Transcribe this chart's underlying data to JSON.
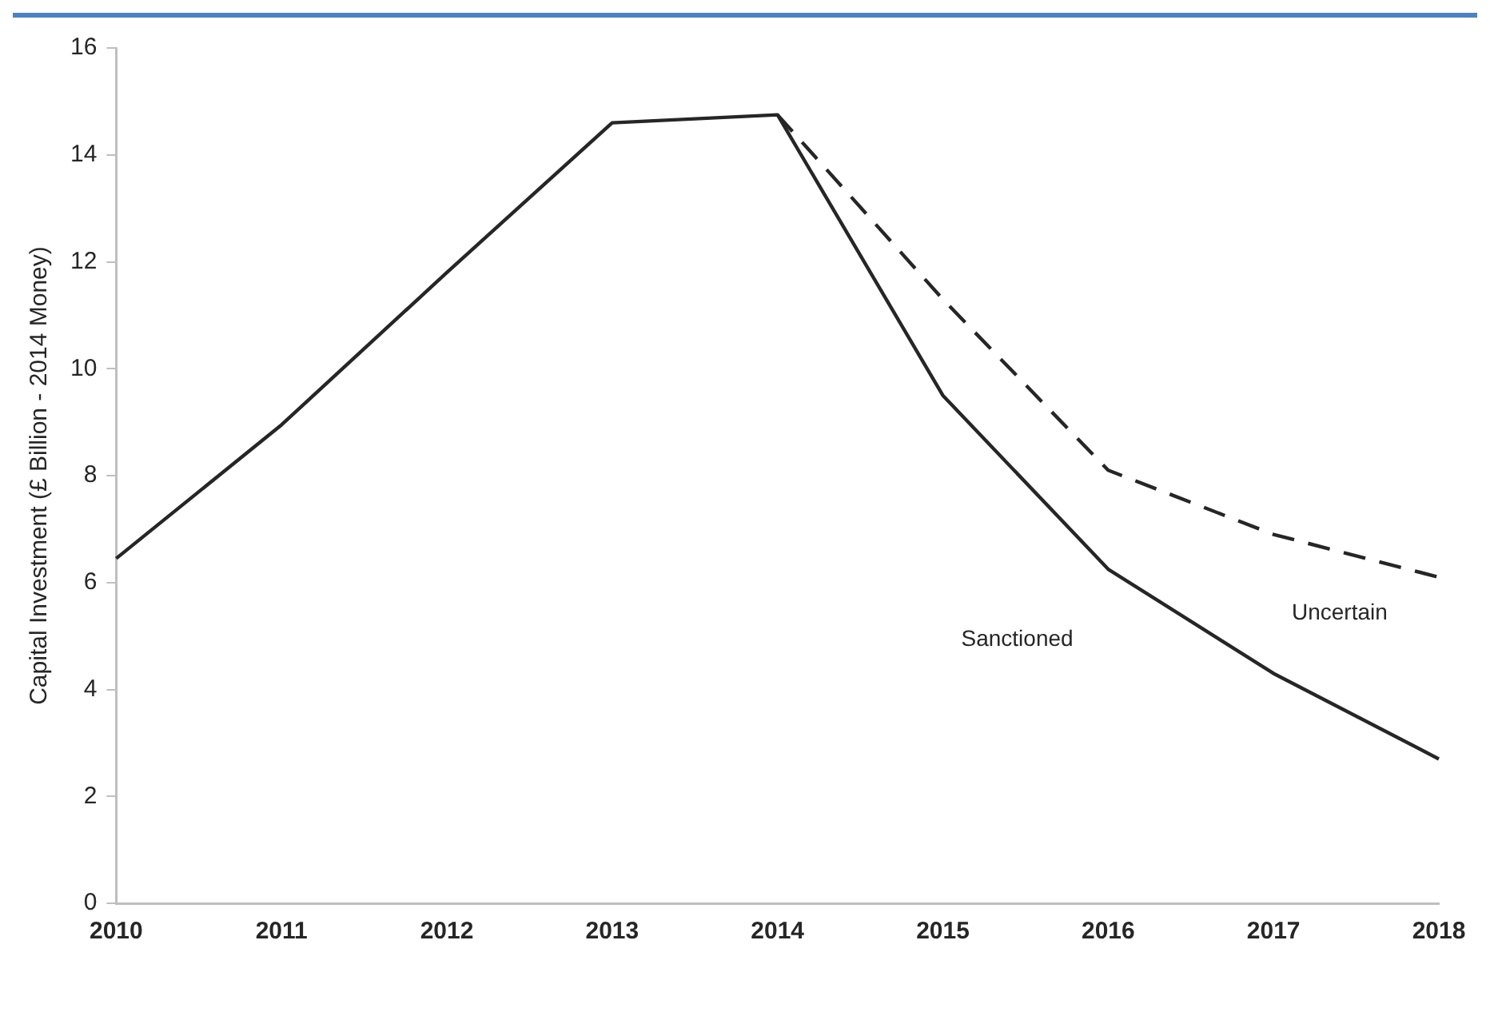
{
  "chart_data": {
    "type": "line",
    "ylabel": "Capital Investment (£ Billion - 2014 Money)",
    "categories": [
      "2010",
      "2011",
      "2012",
      "2013",
      "2014",
      "2015",
      "2016",
      "2017",
      "2018"
    ],
    "series": [
      {
        "name": "Sanctioned",
        "color": "#262626",
        "line_style": "solid",
        "values": [
          6.45,
          8.95,
          11.8,
          14.6,
          14.75,
          9.5,
          6.25,
          4.3,
          2.7
        ]
      },
      {
        "name": "Uncertain",
        "color": "#262626",
        "line_style": "dashed",
        "values": [
          null,
          null,
          null,
          null,
          14.75,
          11.3,
          8.1,
          6.9,
          6.1
        ]
      }
    ],
    "ylim": [
      0,
      16
    ],
    "yticks": [
      0,
      2,
      4,
      6,
      8,
      10,
      12,
      14,
      16
    ],
    "grid": false,
    "legend": false,
    "marker": "none"
  }
}
